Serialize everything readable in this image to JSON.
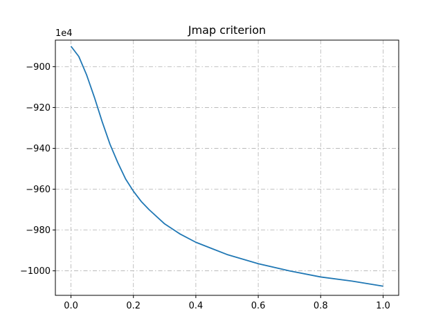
{
  "chart_data": {
    "type": "line",
    "title": "Jmap criterion",
    "xlabel": "",
    "ylabel": "",
    "y_offset_label": "1e4",
    "xlim": [
      -0.05,
      1.05
    ],
    "ylim": [
      -1012,
      -887
    ],
    "xticks": [
      0.0,
      0.2,
      0.4,
      0.6,
      0.8,
      1.0
    ],
    "xtick_labels": [
      "0.0",
      "0.2",
      "0.4",
      "0.6",
      "0.8",
      "1.0"
    ],
    "yticks": [
      -900,
      -920,
      -940,
      -960,
      -980,
      -1000
    ],
    "ytick_labels": [
      "−900",
      "−920",
      "−940",
      "−960",
      "−980",
      "−1000"
    ],
    "grid": true,
    "series": [
      {
        "color": "#1f77b4",
        "x": [
          0.0,
          0.025,
          0.05,
          0.075,
          0.1,
          0.125,
          0.15,
          0.175,
          0.2,
          0.225,
          0.25,
          0.3,
          0.35,
          0.4,
          0.45,
          0.5,
          0.6,
          0.7,
          0.8,
          0.9,
          1.0
        ],
        "y": [
          -890,
          -895,
          -904,
          -915,
          -927,
          -938,
          -947,
          -955,
          -961,
          -966,
          -970,
          -977,
          -982,
          -986,
          -989,
          -992,
          -996.5,
          -1000,
          -1003,
          -1005,
          -1007.5
        ]
      }
    ]
  }
}
